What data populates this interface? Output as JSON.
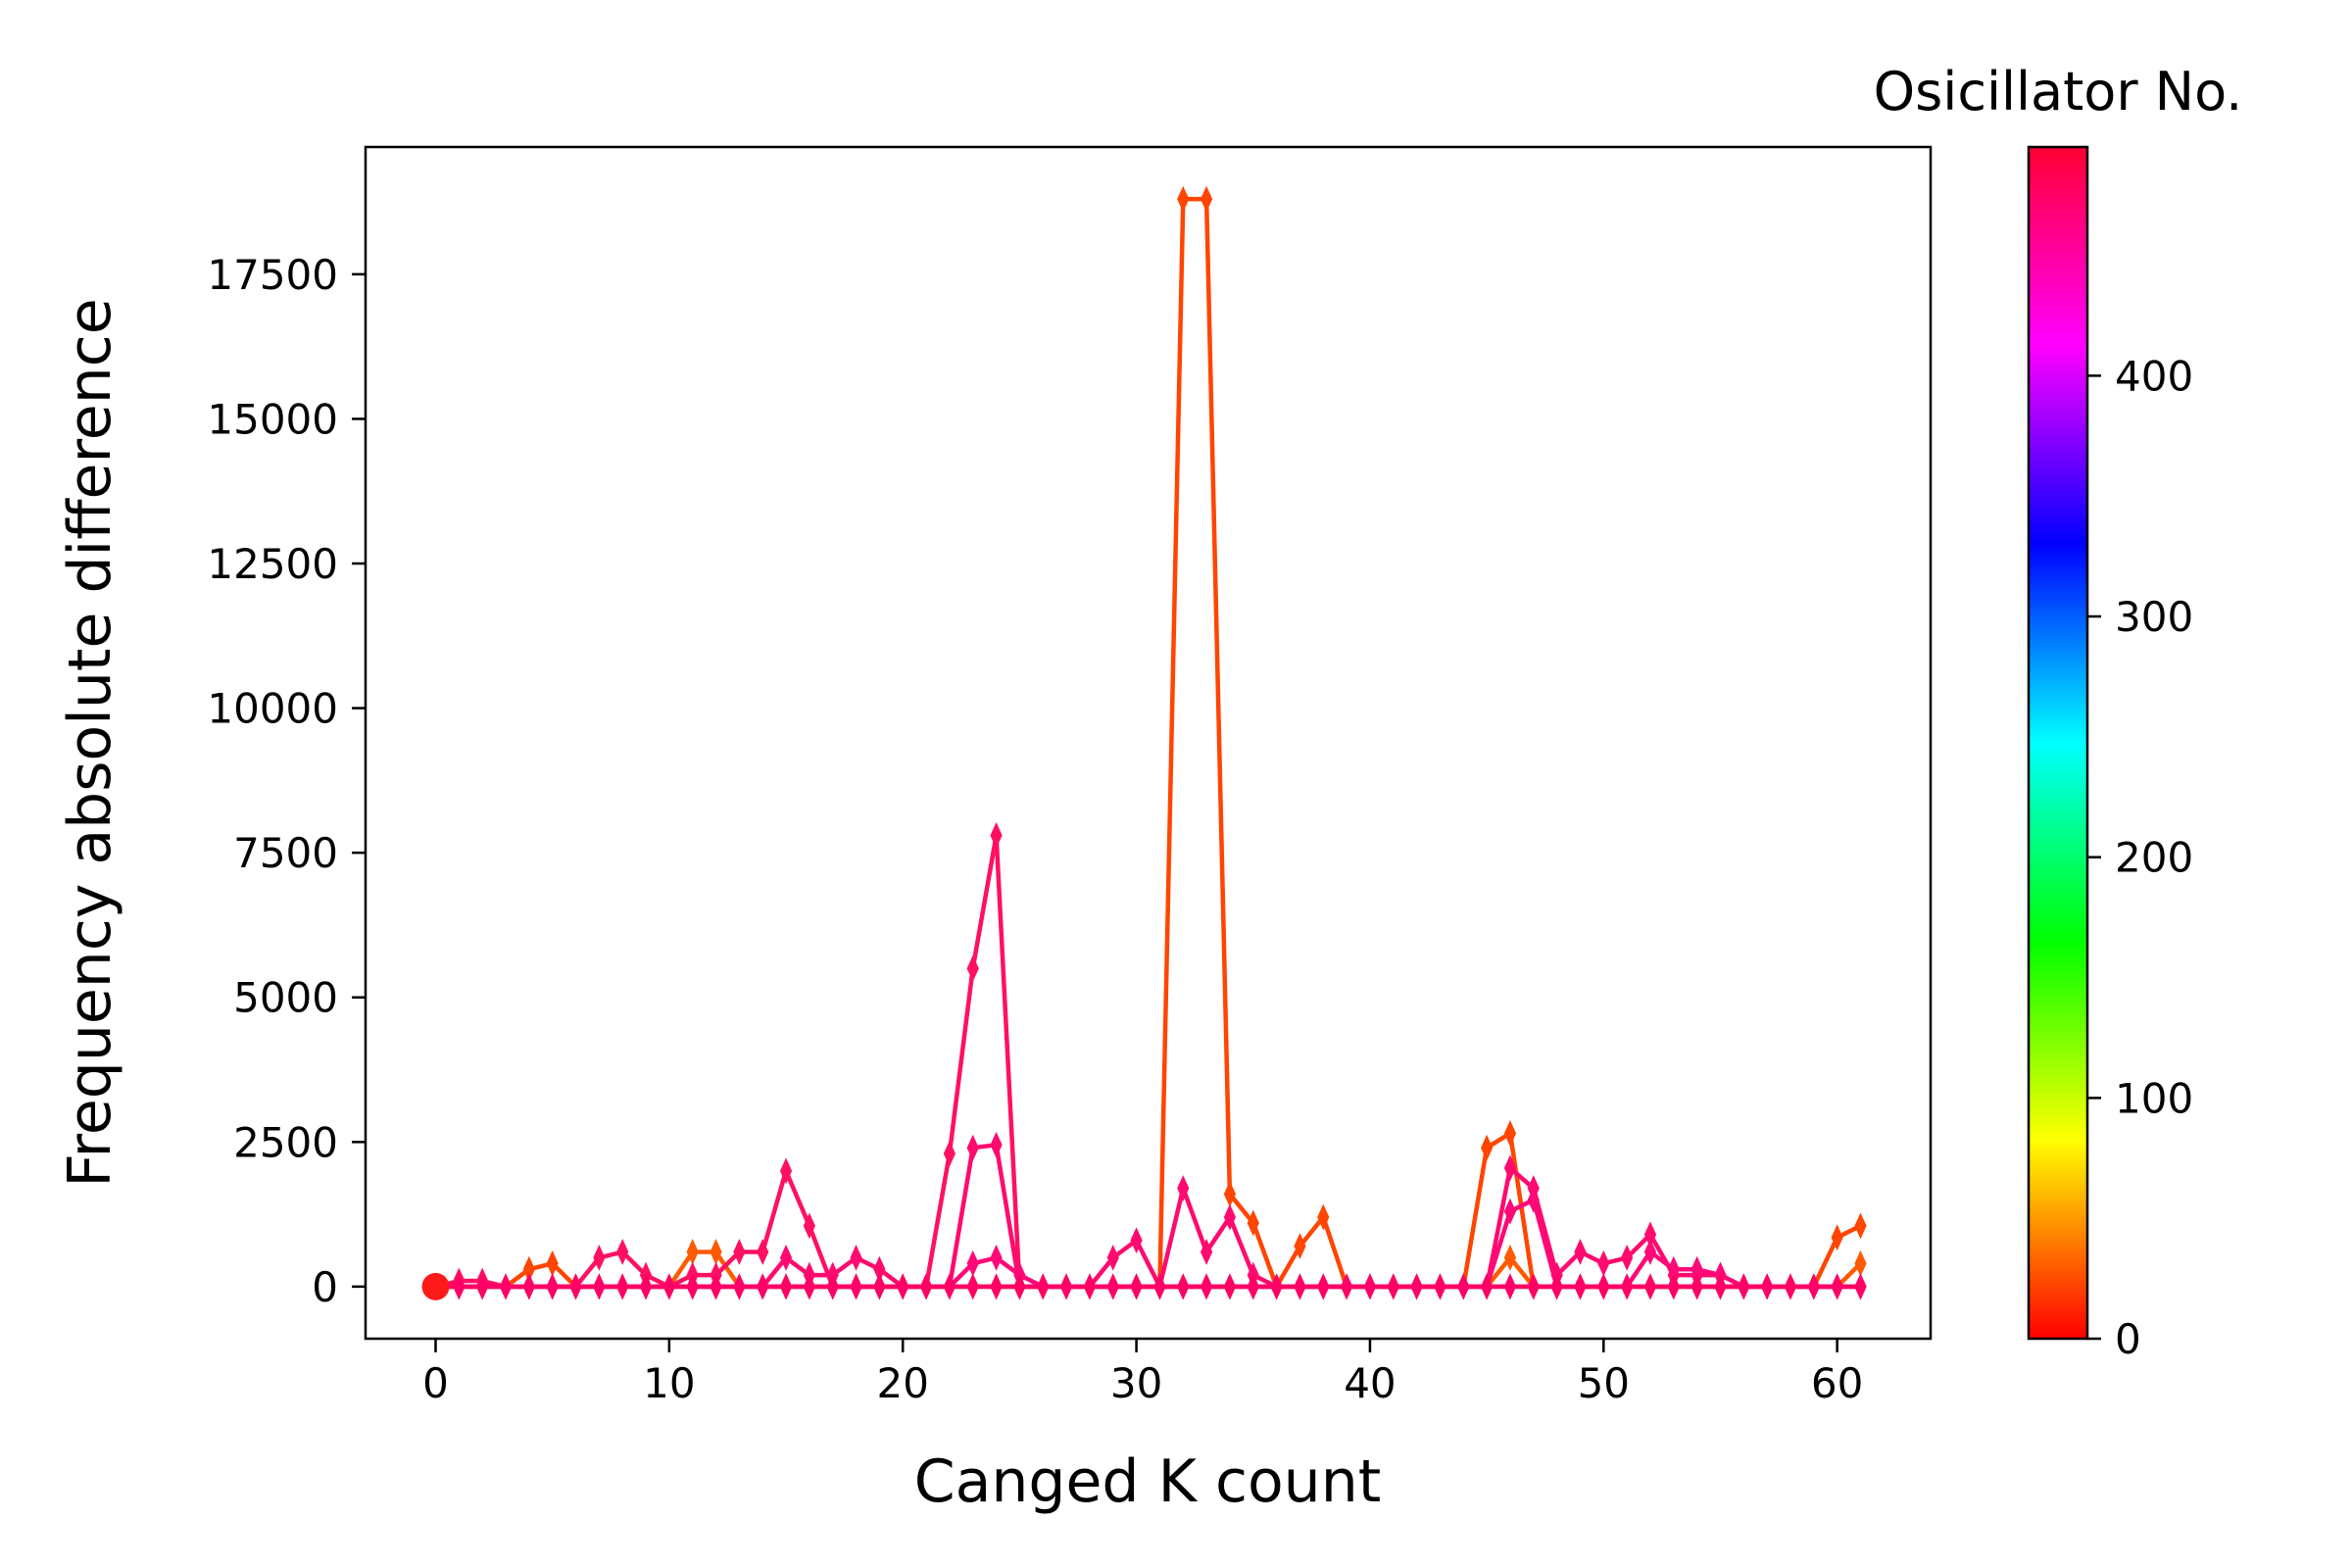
{
  "chart_data": {
    "type": "line",
    "title": "",
    "xlabel": "Canged K count",
    "ylabel": "Frequency absolute difference",
    "xlim": [
      -3,
      64
    ],
    "ylim": [
      -900,
      19700
    ],
    "xticks": [
      0,
      10,
      20,
      30,
      40,
      50,
      60
    ],
    "yticks": [
      0,
      2500,
      5000,
      7500,
      10000,
      12500,
      15000,
      17500
    ],
    "grid": false,
    "marker": "thin-diamond",
    "x": [
      0,
      1,
      2,
      3,
      4,
      5,
      6,
      7,
      8,
      9,
      10,
      11,
      12,
      13,
      14,
      15,
      16,
      17,
      18,
      19,
      20,
      21,
      22,
      23,
      24,
      25,
      26,
      27,
      28,
      29,
      30,
      31,
      32,
      33,
      34,
      35,
      36,
      37,
      38,
      39,
      40,
      41,
      42,
      43,
      44,
      45,
      46,
      47,
      48,
      49,
      50,
      51,
      52,
      53,
      54,
      55,
      56,
      57,
      58,
      59,
      60,
      61
    ],
    "series": [
      {
        "color": "#ff4500",
        "values": [
          0,
          0,
          0,
          0,
          300,
          400,
          0,
          0,
          0,
          0,
          0,
          0,
          0,
          0,
          0,
          0,
          0,
          0,
          0,
          0,
          0,
          0,
          0,
          0,
          0,
          0,
          0,
          0,
          0,
          0,
          0,
          0,
          18800,
          18800,
          1600,
          1100,
          0,
          700,
          1200,
          0,
          0,
          0,
          0,
          0,
          0,
          2400,
          2650,
          0,
          0,
          0,
          0,
          0,
          0,
          0,
          0,
          0,
          0,
          0,
          0,
          0,
          850,
          1050
        ]
      },
      {
        "color": "#ff5a00",
        "values": [
          0,
          0,
          0,
          0,
          0,
          0,
          0,
          0,
          0,
          0,
          0,
          600,
          600,
          0,
          0,
          0,
          0,
          0,
          0,
          0,
          0,
          0,
          0,
          0,
          0,
          0,
          0,
          0,
          0,
          0,
          0,
          0,
          0,
          0,
          0,
          0,
          0,
          0,
          0,
          0,
          0,
          0,
          0,
          0,
          0,
          0,
          500,
          0,
          0,
          0,
          0,
          0,
          0,
          0,
          0,
          0,
          0,
          0,
          0,
          0,
          0,
          400
        ]
      },
      {
        "color": "#ff1060",
        "values": [
          0,
          100,
          100,
          0,
          0,
          0,
          0,
          500,
          600,
          200,
          0,
          200,
          200,
          600,
          600,
          2000,
          1050,
          0,
          0,
          0,
          0,
          0,
          2300,
          5500,
          7800,
          0,
          0,
          0,
          0,
          0,
          0,
          0,
          0,
          0,
          0,
          0,
          0,
          0,
          0,
          0,
          0,
          0,
          0,
          0,
          0,
          0,
          0,
          0,
          0,
          0,
          0,
          0,
          0,
          0,
          0,
          0,
          0,
          0,
          0,
          0,
          0,
          0
        ]
      },
      {
        "color": "#ff0a6e",
        "values": [
          0,
          0,
          0,
          0,
          0,
          0,
          0,
          0,
          0,
          0,
          0,
          0,
          0,
          0,
          0,
          500,
          200,
          200,
          500,
          300,
          0,
          0,
          0,
          2400,
          2450,
          0,
          0,
          0,
          0,
          500,
          800,
          0,
          1700,
          600,
          1200,
          200,
          0,
          0,
          0,
          0,
          0,
          0,
          0,
          0,
          0,
          0,
          2050,
          1700,
          200,
          600,
          400,
          500,
          900,
          200,
          200,
          200,
          0,
          0,
          0,
          0,
          0,
          0
        ]
      },
      {
        "color": "#ff0877",
        "values": [
          0,
          0,
          0,
          0,
          0,
          0,
          0,
          0,
          0,
          0,
          0,
          0,
          0,
          0,
          0,
          0,
          0,
          0,
          0,
          0,
          0,
          0,
          0,
          400,
          500,
          200,
          0,
          0,
          0,
          0,
          0,
          0,
          0,
          0,
          0,
          0,
          0,
          0,
          0,
          0,
          0,
          0,
          0,
          0,
          0,
          0,
          1300,
          1500,
          0,
          0,
          0,
          0,
          600,
          300,
          300,
          200,
          0,
          0,
          0,
          0,
          0,
          0
        ]
      },
      {
        "color": "#ff0066",
        "values": [
          0,
          0,
          0,
          0,
          0,
          0,
          0,
          0,
          0,
          0,
          0,
          0,
          0,
          0,
          0,
          0,
          0,
          0,
          0,
          0,
          0,
          0,
          0,
          0,
          0,
          0,
          0,
          0,
          0,
          0,
          0,
          0,
          0,
          0,
          0,
          0,
          0,
          0,
          0,
          0,
          0,
          0,
          0,
          0,
          0,
          0,
          0,
          0,
          0,
          0,
          0,
          0,
          0,
          0,
          0,
          0,
          0,
          0,
          0,
          0,
          0,
          0
        ]
      }
    ],
    "colorbar": {
      "title": "Osicillator No.",
      "range": [
        0,
        495
      ],
      "ticks": [
        0,
        100,
        200,
        300,
        400
      ],
      "colormap": "hsv"
    }
  }
}
